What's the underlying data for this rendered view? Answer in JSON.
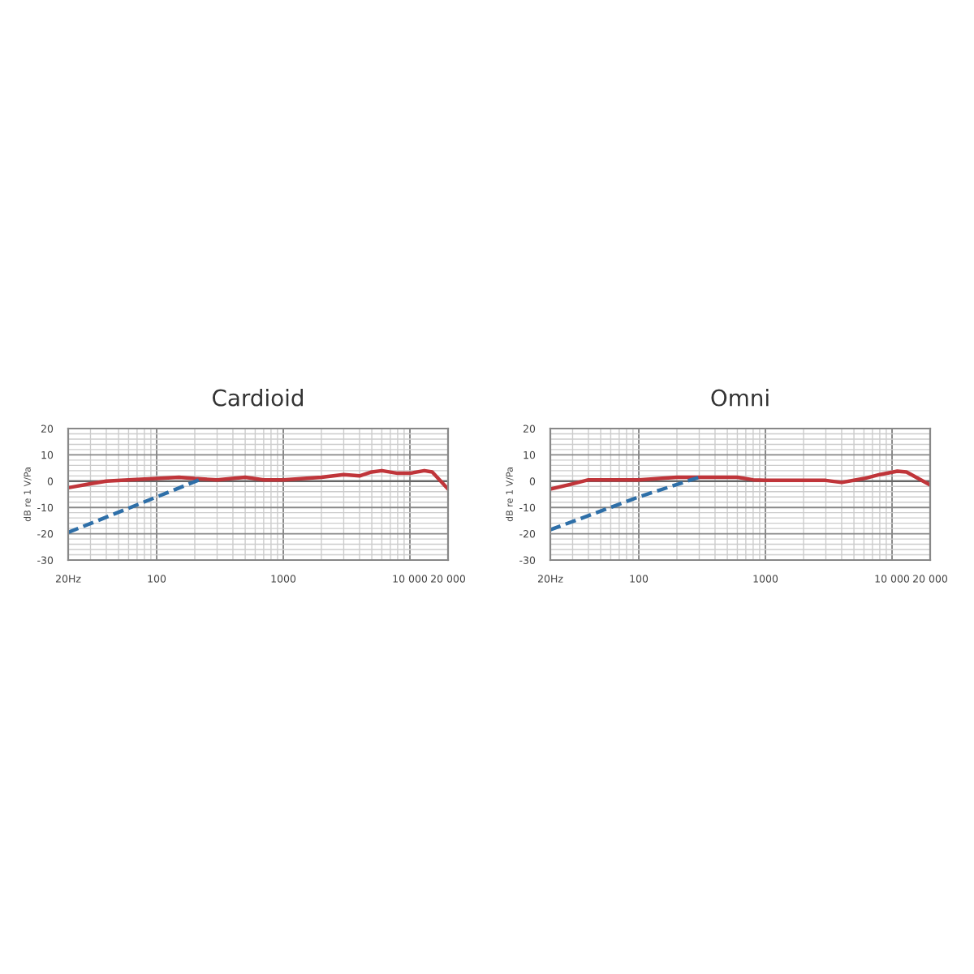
{
  "chart_data": [
    {
      "type": "line",
      "title": "Cardioid",
      "ylabel": "dB re 1 V/Pa",
      "log": "x",
      "grid": true,
      "xlim": [
        20,
        20000
      ],
      "ylim": [
        -30,
        20
      ],
      "xticks": [
        {
          "value": 20,
          "label": "20Hz"
        },
        100,
        1000,
        {
          "value": 10000,
          "label": "10 000"
        },
        {
          "value": 20000,
          "label": "20 000"
        }
      ],
      "yticks": [
        -30,
        -20,
        -10,
        0,
        10,
        20
      ],
      "series": [
        {
          "color": "#c0353a",
          "line_style": "solid",
          "x": [
            20,
            30,
            40,
            60,
            100,
            150,
            200,
            300,
            500,
            700,
            1000,
            2000,
            3000,
            4000,
            5000,
            6000,
            8000,
            10000,
            13000,
            15000,
            20000
          ],
          "values": [
            -2.5,
            -1,
            0,
            0.5,
            1,
            1.5,
            1,
            0.5,
            1.5,
            0.5,
            0.5,
            1.5,
            2.5,
            2,
            3.5,
            4,
            3,
            3,
            4,
            3.5,
            -3
          ]
        },
        {
          "color": "#2e6fa8",
          "line_style": "dashed",
          "x": [
            20,
            100,
            230
          ],
          "values": [
            -19.5,
            -6,
            1
          ]
        }
      ]
    },
    {
      "type": "line",
      "title": "Omni",
      "ylabel": "dB re 1 V/Pa",
      "log": "x",
      "grid": true,
      "xlim": [
        20,
        20000
      ],
      "ylim": [
        -30,
        20
      ],
      "xticks": [
        {
          "value": 20,
          "label": "20Hz"
        },
        100,
        1000,
        {
          "value": 10000,
          "label": "10 000"
        },
        {
          "value": 20000,
          "label": "20 000"
        }
      ],
      "yticks": [
        -30,
        -20,
        -10,
        0,
        10,
        20
      ],
      "series": [
        {
          "color": "#c0353a",
          "line_style": "solid",
          "x": [
            20,
            30,
            40,
            100,
            200,
            300,
            600,
            800,
            1000,
            3000,
            4000,
            6000,
            8000,
            11000,
            13000,
            20000
          ],
          "values": [
            -3,
            -1,
            0.5,
            0.5,
            1.5,
            1.5,
            1.5,
            0.5,
            0.3,
            0.3,
            -0.5,
            1,
            2.5,
            3.8,
            3.5,
            -1.5
          ]
        },
        {
          "color": "#2e6fa8",
          "line_style": "dashed",
          "x": [
            20,
            100,
            300
          ],
          "values": [
            -18.5,
            -6,
            1.5
          ]
        }
      ]
    }
  ]
}
